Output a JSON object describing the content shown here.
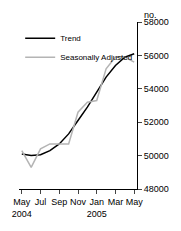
{
  "chart_data": {
    "type": "line",
    "ylabel": "no.",
    "categories": [
      "May 2004",
      null,
      "Jul",
      null,
      "Sep",
      null,
      "Nov",
      null,
      "Jan 2005",
      null,
      "Mar",
      null,
      "May"
    ],
    "series": [
      {
        "name": "Trend",
        "color": "#000000",
        "values": [
          50100,
          50000,
          50050,
          50300,
          50700,
          51300,
          52100,
          52900,
          53800,
          54700,
          55400,
          55900,
          56100
        ]
      },
      {
        "name": "Seasonally Adjusted",
        "color": "#b4b4b4",
        "values": [
          50300,
          49300,
          50400,
          50700,
          50700,
          50700,
          52600,
          53200,
          53300,
          55200,
          55900,
          55900,
          55600
        ]
      }
    ],
    "ylim": [
      48000,
      58000
    ],
    "yticks": [
      48000,
      50000,
      52000,
      54000,
      56000,
      58000
    ],
    "grid": false,
    "legend": "upper left"
  }
}
